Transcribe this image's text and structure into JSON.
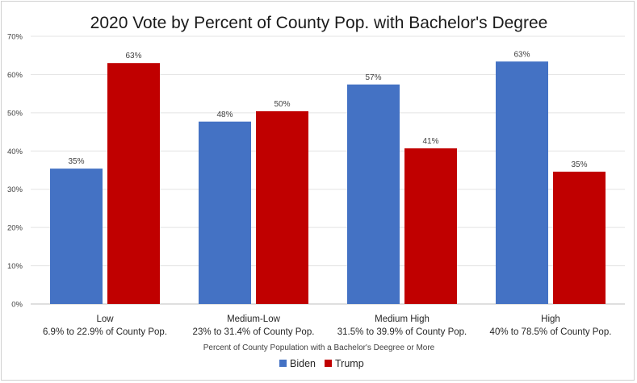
{
  "chart_data": {
    "type": "bar",
    "title": "2020 Vote by Percent of County Pop. with Bachelor's Degree",
    "xlabel": "Percent of County Population with a Bachelor's Deegree or More",
    "ylabel": "",
    "ylim": [
      0,
      70
    ],
    "yticks": [
      "0%",
      "10%",
      "20%",
      "30%",
      "40%",
      "50%",
      "60%",
      "70%"
    ],
    "grid": true,
    "legend_position": "bottom",
    "categories": [
      {
        "name": "Low",
        "sub": "6.9% to 22.9% of County Pop."
      },
      {
        "name": "Medium-Low",
        "sub": "23% to 31.4% of County Pop."
      },
      {
        "name": "Medium High",
        "sub": "31.5% to 39.9% of County Pop."
      },
      {
        "name": "High",
        "sub": "40% to 78.5% of County Pop."
      }
    ],
    "series": [
      {
        "name": "Biden",
        "color": "#4472C4",
        "values": [
          35.4,
          47.7,
          57.4,
          63.4
        ],
        "labels": [
          "35%",
          "48%",
          "57%",
          "63%"
        ]
      },
      {
        "name": "Trump",
        "color": "#C00000",
        "values": [
          63.0,
          50.4,
          40.7,
          34.6
        ],
        "labels": [
          "63%",
          "50%",
          "41%",
          "35%"
        ]
      }
    ]
  }
}
